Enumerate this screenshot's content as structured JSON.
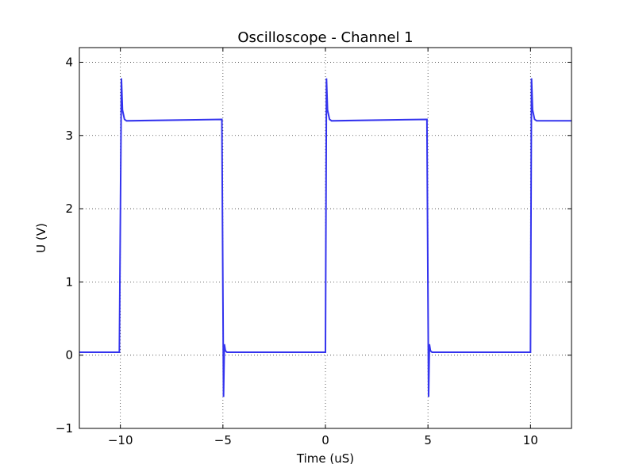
{
  "chart_data": {
    "type": "line",
    "title": "Oscilloscope - Channel 1",
    "xlabel": "Time (uS)",
    "ylabel": "U (V)",
    "xlim": [
      -12,
      12
    ],
    "ylim": [
      -1,
      4.2
    ],
    "xticks": [
      -10,
      -5,
      0,
      5,
      10
    ],
    "xtick_labels": [
      "−10",
      "−5",
      "0",
      "5",
      "10"
    ],
    "yticks": [
      -1,
      0,
      1,
      2,
      3,
      4
    ],
    "ytick_labels": [
      "−1",
      "0",
      "1",
      "2",
      "3",
      "4"
    ],
    "grid": true,
    "series": [
      {
        "color": "#3333ee",
        "x": [
          -12,
          -10.05,
          -9.95,
          -9.9,
          -9.8,
          -9.7,
          -5.05,
          -4.97,
          -4.93,
          -4.88,
          -4.8,
          0,
          0.05,
          0.1,
          0.2,
          0.3,
          4.95,
          5.03,
          5.07,
          5.12,
          5.2,
          10,
          10.05,
          10.1,
          10.2,
          10.3,
          12
        ],
        "y": [
          0.04,
          0.04,
          3.78,
          3.35,
          3.22,
          3.2,
          3.22,
          -0.57,
          0.15,
          0.06,
          0.04,
          0.04,
          3.78,
          3.35,
          3.22,
          3.2,
          3.22,
          -0.57,
          0.15,
          0.06,
          0.04,
          0.04,
          3.78,
          3.35,
          3.22,
          3.2,
          3.2
        ]
      }
    ]
  }
}
